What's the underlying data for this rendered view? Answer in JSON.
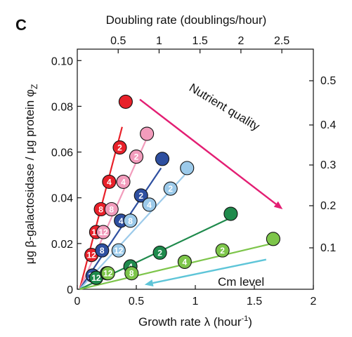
{
  "panel_label": "C",
  "chart_data": {
    "type": "scatter",
    "xlabel": "Growth rate λ (hour",
    "xlabel_sup": "-1",
    "xlabel_close": ")",
    "ylabel": "μg β-galactosidase / μg protein φ",
    "ylabel_sub": "Z",
    "top_axis_label": "Doubling rate (doublings/hour)",
    "xlim": [
      0,
      2
    ],
    "ylim": [
      0,
      0.105
    ],
    "xticks": [
      "0",
      "0.5",
      "1",
      "1.5",
      "2"
    ],
    "yticks": [
      "0",
      "0.02",
      "0.04",
      "0.06",
      "0.08",
      "0.10"
    ],
    "top_ticks": [
      "0.5",
      "1",
      "1.5",
      "2",
      "2.5"
    ],
    "right_ticks": [
      "0.1",
      "0.2",
      "0.3",
      "0.4",
      "0.5"
    ],
    "annotations": {
      "nutrient": "Nutrient quality",
      "cm": "Cm level"
    },
    "series": [
      {
        "color": "#e8212a",
        "points": [
          {
            "x": 0.41,
            "y": 0.082,
            "label": ""
          },
          {
            "x": 0.36,
            "y": 0.062,
            "label": "2"
          },
          {
            "x": 0.27,
            "y": 0.047,
            "label": "4"
          },
          {
            "x": 0.2,
            "y": 0.035,
            "label": "8"
          },
          {
            "x": 0.16,
            "y": 0.025,
            "label": "12"
          },
          {
            "x": 0.12,
            "y": 0.015,
            "label": "12"
          }
        ]
      },
      {
        "color": "#f29cbc",
        "points": [
          {
            "x": 0.59,
            "y": 0.068,
            "label": ""
          },
          {
            "x": 0.5,
            "y": 0.058,
            "label": "2"
          },
          {
            "x": 0.39,
            "y": 0.047,
            "label": "4"
          },
          {
            "x": 0.29,
            "y": 0.035,
            "label": "8"
          },
          {
            "x": 0.22,
            "y": 0.025,
            "label": "12"
          }
        ]
      },
      {
        "color": "#2e4fa0",
        "points": [
          {
            "x": 0.72,
            "y": 0.057,
            "label": ""
          },
          {
            "x": 0.54,
            "y": 0.041,
            "label": "2"
          },
          {
            "x": 0.37,
            "y": 0.03,
            "label": "4"
          },
          {
            "x": 0.21,
            "y": 0.017,
            "label": "8"
          },
          {
            "x": 0.13,
            "y": 0.006,
            "label": "12"
          }
        ]
      },
      {
        "color": "#9ccaea",
        "points": [
          {
            "x": 0.93,
            "y": 0.053,
            "label": ""
          },
          {
            "x": 0.79,
            "y": 0.044,
            "label": "2"
          },
          {
            "x": 0.61,
            "y": 0.037,
            "label": "4"
          },
          {
            "x": 0.45,
            "y": 0.03,
            "label": "8"
          },
          {
            "x": 0.35,
            "y": 0.017,
            "label": "12"
          }
        ]
      },
      {
        "color": "#1f8a4c",
        "points": [
          {
            "x": 1.3,
            "y": 0.033,
            "label": ""
          },
          {
            "x": 0.7,
            "y": 0.016,
            "label": "2"
          },
          {
            "x": 0.45,
            "y": 0.01,
            "label": "4"
          },
          {
            "x": 0.25,
            "y": 0.007,
            "label": "8"
          },
          {
            "x": 0.16,
            "y": 0.005,
            "label": "12"
          }
        ]
      },
      {
        "color": "#7dc54a",
        "points": [
          {
            "x": 1.66,
            "y": 0.022,
            "label": ""
          },
          {
            "x": 1.23,
            "y": 0.017,
            "label": "2"
          },
          {
            "x": 0.91,
            "y": 0.012,
            "label": "4"
          },
          {
            "x": 0.46,
            "y": 0.007,
            "label": "8"
          },
          {
            "x": 0.26,
            "y": 0.007,
            "label": "12"
          }
        ]
      }
    ],
    "fit_lines": [
      {
        "color": "#e8212a",
        "from": [
          0.02,
          0.0
        ],
        "to": [
          0.38,
          0.071
        ]
      },
      {
        "color": "#f29cbc",
        "from": [
          0.02,
          0.0
        ],
        "to": [
          0.58,
          0.065
        ]
      },
      {
        "color": "#2e4fa0",
        "from": [
          0.02,
          0.0
        ],
        "to": [
          0.71,
          0.053
        ]
      },
      {
        "color": "#9ccaea",
        "from": [
          0.02,
          0.0
        ],
        "to": [
          0.91,
          0.05
        ]
      },
      {
        "color": "#1f8a4c",
        "from": [
          0.02,
          0.0
        ],
        "to": [
          1.29,
          0.031
        ]
      },
      {
        "color": "#7dc54a",
        "from": [
          0.02,
          0.0
        ],
        "to": [
          1.65,
          0.02
        ]
      }
    ],
    "arrows": [
      {
        "name": "nutrient-arrow",
        "color": "#e31e73",
        "from": [
          0.53,
          0.083
        ],
        "to": [
          1.74,
          0.035
        ]
      },
      {
        "name": "cm-arrow",
        "color": "#5ec5d8",
        "from": [
          1.6,
          0.013
        ],
        "to": [
          0.57,
          0.002
        ]
      }
    ]
  }
}
